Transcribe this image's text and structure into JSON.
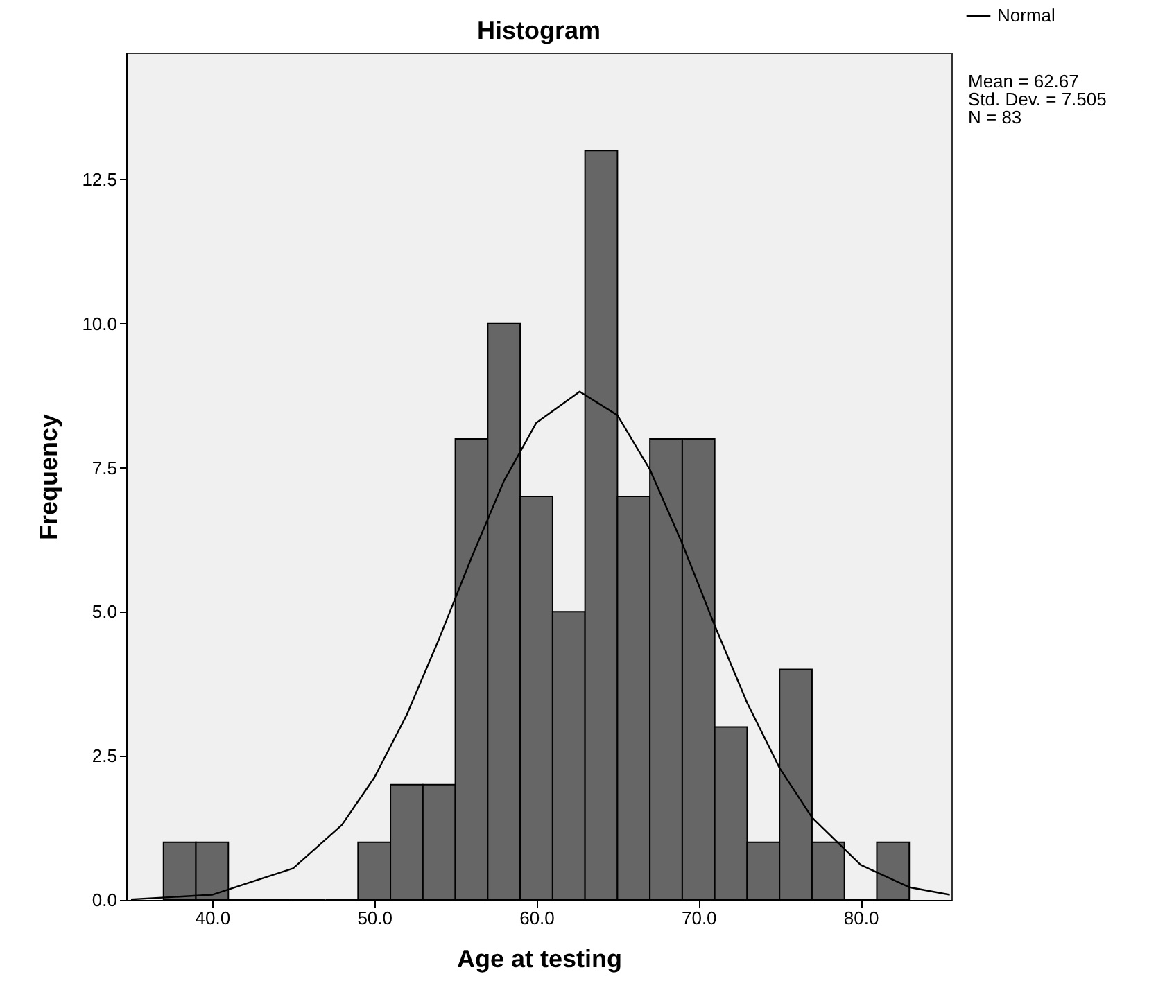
{
  "chart_data": {
    "type": "histogram",
    "title": "Histogram",
    "xlabel": "Age at testing",
    "ylabel": "Frequency",
    "bins": [
      37,
      39,
      41,
      43,
      45,
      47,
      49,
      51,
      53,
      55,
      57,
      59,
      61,
      63,
      65,
      67,
      69,
      71,
      73,
      75,
      77,
      79,
      81,
      83
    ],
    "values": [
      1,
      1,
      0,
      0,
      0,
      0,
      1,
      2,
      2,
      8,
      10,
      7,
      5,
      13,
      7,
      8,
      8,
      3,
      1,
      4,
      1,
      0,
      1
    ],
    "color": "#666666",
    "series": [
      {
        "name": "Normal",
        "type": "line",
        "color": "#000000",
        "x": [
          35,
          40,
          45,
          48,
          50,
          52,
          54,
          56,
          58,
          60,
          62.67,
          65,
          67,
          69,
          71,
          73,
          75,
          77,
          80,
          83,
          85.5
        ],
        "values": [
          0.01,
          0.09,
          0.55,
          1.3,
          2.12,
          3.21,
          4.53,
          5.94,
          7.27,
          8.28,
          8.82,
          8.41,
          7.47,
          6.18,
          4.76,
          3.42,
          2.29,
          1.43,
          0.61,
          0.22,
          0.09
        ]
      }
    ],
    "xlim": [
      34.7,
      85.6
    ],
    "ylim": [
      0,
      14.7
    ],
    "xticks": [
      {
        "value": 40,
        "label": "40.0"
      },
      {
        "value": 50,
        "label": "50.0"
      },
      {
        "value": 60,
        "label": "60.0"
      },
      {
        "value": 70,
        "label": "70.0"
      },
      {
        "value": 80,
        "label": "80.0"
      }
    ],
    "yticks": [
      {
        "value": 0,
        "label": "0.0"
      },
      {
        "value": 2.5,
        "label": "2.5"
      },
      {
        "value": 5,
        "label": "5.0"
      },
      {
        "value": 7.5,
        "label": "7.5"
      },
      {
        "value": 10,
        "label": "10.0"
      },
      {
        "value": 12.5,
        "label": "12.5"
      }
    ],
    "annotations": [
      "Mean = 62.67",
      "Std. Dev. = 7.505",
      "N = 83"
    ],
    "legend": "top right",
    "grid": false
  }
}
